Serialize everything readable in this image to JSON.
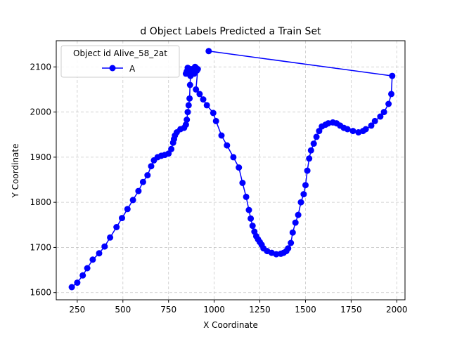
{
  "chart_data": {
    "type": "line",
    "title": "d Object Labels Predicted a Train Set",
    "xlabel": "X Coordinate",
    "ylabel": "Y Coordinate",
    "xlim": [
      135,
      2045
    ],
    "ylim": [
      1584,
      2158
    ],
    "xticks": [
      250,
      500,
      750,
      1000,
      1250,
      1500,
      1750,
      2000
    ],
    "yticks": [
      1600,
      1700,
      1800,
      1900,
      2000,
      2100
    ],
    "grid": true,
    "legend": {
      "title": "Object id Alive_58_2at",
      "placement": "top-left"
    },
    "series": [
      {
        "name": "A",
        "color": "#0000ff",
        "marker": "circle",
        "x": [
          220,
          250,
          280,
          305,
          335,
          370,
          400,
          430,
          465,
          495,
          525,
          555,
          585,
          610,
          635,
          655,
          670,
          690,
          710,
          730,
          750,
          765,
          775,
          780,
          785,
          795,
          815,
          835,
          845,
          850,
          855,
          860,
          865,
          868,
          870,
          872,
          874,
          880,
          885,
          890,
          895,
          900,
          905,
          910,
          900,
          920,
          940,
          960,
          995,
          1010,
          1040,
          1070,
          1105,
          1135,
          1155,
          1175,
          1190,
          1200,
          1210,
          1220,
          1230,
          1240,
          1250,
          1260,
          1270,
          1290,
          1315,
          1340,
          1365,
          1380,
          1395,
          1405,
          1420,
          1430,
          1445,
          1460,
          1475,
          1490,
          1500,
          1510,
          1520,
          1530,
          1545,
          1560,
          1575,
          1590,
          1610,
          1625,
          1650,
          1670,
          1690,
          1710,
          1730,
          1760,
          1790,
          1815,
          1830,
          1860,
          1880,
          1910,
          1930,
          1955,
          1970,
          1975
        ],
        "y": [
          1612,
          1622,
          1638,
          1654,
          1673,
          1687,
          1702,
          1722,
          1745,
          1765,
          1785,
          1805,
          1825,
          1845,
          1860,
          1880,
          1893,
          1900,
          1903,
          1905,
          1908,
          1918,
          1932,
          1940,
          1948,
          1955,
          1962,
          1965,
          1972,
          1983,
          2000,
          2015,
          2030,
          2060,
          2080,
          2088,
          2095,
          2090,
          2092,
          2085,
          2100,
          2098,
          2092,
          2095,
          2050,
          2040,
          2028,
          2015,
          1998,
          1980,
          1948,
          1926,
          1900,
          1877,
          1843,
          1812,
          1783,
          1764,
          1748,
          1735,
          1725,
          1718,
          1712,
          1706,
          1698,
          1692,
          1688,
          1685,
          1686,
          1688,
          1692,
          1698,
          1710,
          1733,
          1755,
          1772,
          1800,
          1818,
          1838,
          1870,
          1897,
          1915,
          1930,
          1945,
          1958,
          1968,
          1972,
          1975,
          1977,
          1975,
          1970,
          1965,
          1962,
          1958,
          1955,
          1958,
          1962,
          1970,
          1980,
          1990,
          2000,
          2018,
          2040,
          2080
        ],
        "extra_points": [
          [
            970,
            2135
          ],
          [
            845,
            2085
          ],
          [
            850,
            2090
          ],
          [
            855,
            2098
          ],
          [
            862,
            2092
          ],
          [
            875,
            2088
          ]
        ]
      }
    ]
  }
}
